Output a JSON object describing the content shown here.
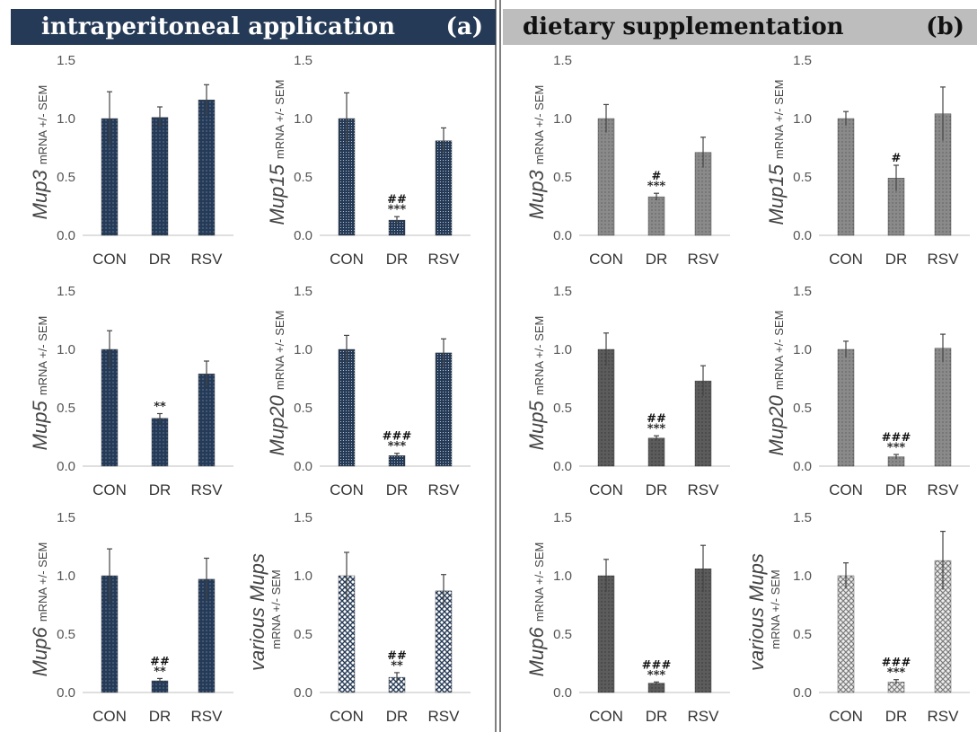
{
  "colors": {
    "header_a_bg": "#253a56",
    "header_b_bg": "#bdbdbd",
    "bar_a": "#253a56",
    "bar_b": "#7a7a7a",
    "bar_b_dark": "#5c5c5c",
    "bar_b_light": "#cfcfcf"
  },
  "panel_a": {
    "title": "intraperitoneal application",
    "label": "(a)"
  },
  "panel_b": {
    "title": "dietary supplementation",
    "label": "(b)"
  },
  "chart_data": [
    {
      "type": "bar",
      "panel": "a",
      "gene": "Mup3",
      "ylabel_unit": "mRNA +/- SEM",
      "categories": [
        "CON",
        "DR",
        "RSV"
      ],
      "values": [
        1.0,
        1.01,
        1.16
      ],
      "errors": [
        0.23,
        0.09,
        0.13
      ],
      "significance": [
        "",
        "",
        ""
      ],
      "ylim": [
        0,
        1.5
      ],
      "yticks": [
        "0.0",
        "0.5",
        "1.0",
        "1.5"
      ]
    },
    {
      "type": "bar",
      "panel": "a",
      "gene": "Mup15",
      "ylabel_unit": "mRNA +/- SEM",
      "categories": [
        "CON",
        "DR",
        "RSV"
      ],
      "values": [
        1.0,
        0.13,
        0.81
      ],
      "errors": [
        0.22,
        0.03,
        0.11
      ],
      "significance": [
        "",
        "##\n***",
        ""
      ],
      "ylim": [
        0,
        1.5
      ],
      "yticks": [
        "0.0",
        "0.5",
        "1.0",
        "1.5"
      ]
    },
    {
      "type": "bar",
      "panel": "a",
      "gene": "Mup5",
      "ylabel_unit": "mRNA  +/- SEM",
      "categories": [
        "CON",
        "DR",
        "RSV"
      ],
      "values": [
        1.0,
        0.41,
        0.79
      ],
      "errors": [
        0.16,
        0.04,
        0.11
      ],
      "significance": [
        "",
        "**",
        ""
      ],
      "ylim": [
        0,
        1.5
      ],
      "yticks": [
        "0.0",
        "0.5",
        "1.0",
        "1.5"
      ]
    },
    {
      "type": "bar",
      "panel": "a",
      "gene": "Mup20",
      "ylabel_unit": "mRNA  +/- SEM",
      "categories": [
        "CON",
        "DR",
        "RSV"
      ],
      "values": [
        1.0,
        0.09,
        0.97
      ],
      "errors": [
        0.12,
        0.02,
        0.12
      ],
      "significance": [
        "",
        "###\n***",
        ""
      ],
      "ylim": [
        0,
        1.5
      ],
      "yticks": [
        "0.0",
        "0.5",
        "1.0",
        "1.5"
      ]
    },
    {
      "type": "bar",
      "panel": "a",
      "gene": "Mup6",
      "ylabel_unit": "mRNA +/- SEM",
      "categories": [
        "CON",
        "DR",
        "RSV"
      ],
      "values": [
        1.0,
        0.1,
        0.97
      ],
      "errors": [
        0.23,
        0.02,
        0.18
      ],
      "significance": [
        "",
        "##\n**",
        ""
      ],
      "ylim": [
        0,
        1.5
      ],
      "yticks": [
        "0.0",
        "0.5",
        "1.0",
        "1.5"
      ]
    },
    {
      "type": "bar",
      "panel": "a",
      "gene": "various Mups",
      "ylabel_unit": "mRNA +/- SEM",
      "categories": [
        "CON",
        "DR",
        "RSV"
      ],
      "values": [
        1.0,
        0.13,
        0.87
      ],
      "errors": [
        0.2,
        0.04,
        0.14
      ],
      "significance": [
        "",
        "##\n**",
        ""
      ],
      "ylim": [
        0,
        1.5
      ],
      "yticks": [
        "0.0",
        "0.5",
        "1.0",
        "1.5"
      ]
    },
    {
      "type": "bar",
      "panel": "b",
      "gene": "Mup3",
      "ylabel_unit": "mRNA +/- SEM",
      "categories": [
        "CON",
        "DR",
        "RSV"
      ],
      "values": [
        1.0,
        0.33,
        0.71
      ],
      "errors": [
        0.12,
        0.03,
        0.13
      ],
      "significance": [
        "",
        "#\n***",
        ""
      ],
      "ylim": [
        0,
        1.5
      ],
      "yticks": [
        "0.0",
        "0.5",
        "1.0",
        "1.5"
      ]
    },
    {
      "type": "bar",
      "panel": "b",
      "gene": "Mup15",
      "ylabel_unit": "mRNA +/- SEM",
      "categories": [
        "CON",
        "DR",
        "RSV"
      ],
      "values": [
        1.0,
        0.49,
        1.04
      ],
      "errors": [
        0.06,
        0.11,
        0.23
      ],
      "significance": [
        "",
        "#",
        ""
      ],
      "ylim": [
        0,
        1.5
      ],
      "yticks": [
        "0.0",
        "0.5",
        "1.0",
        "1.5"
      ]
    },
    {
      "type": "bar",
      "panel": "b",
      "gene": "Mup5",
      "ylabel_unit": "mRNA +/- SEM",
      "categories": [
        "CON",
        "DR",
        "RSV"
      ],
      "values": [
        1.0,
        0.24,
        0.73
      ],
      "errors": [
        0.14,
        0.02,
        0.13
      ],
      "significance": [
        "",
        "##\n***",
        ""
      ],
      "ylim": [
        0,
        1.5
      ],
      "yticks": [
        "0.0",
        "0.5",
        "1.0",
        "1.5"
      ]
    },
    {
      "type": "bar",
      "panel": "b",
      "gene": "Mup20",
      "ylabel_unit": "mRNA +/- SEM",
      "categories": [
        "CON",
        "DR",
        "RSV"
      ],
      "values": [
        1.0,
        0.08,
        1.01
      ],
      "errors": [
        0.07,
        0.02,
        0.12
      ],
      "significance": [
        "",
        "###\n***",
        ""
      ],
      "ylim": [
        0,
        1.5
      ],
      "yticks": [
        "0.0",
        "0.5",
        "1.0",
        "1.5"
      ]
    },
    {
      "type": "bar",
      "panel": "b",
      "gene": "Mup6",
      "ylabel_unit": "mRNA +/- SEM",
      "categories": [
        "CON",
        "DR",
        "RSV"
      ],
      "values": [
        1.0,
        0.08,
        1.06
      ],
      "errors": [
        0.14,
        0.01,
        0.2
      ],
      "significance": [
        "",
        "###\n***",
        ""
      ],
      "ylim": [
        0,
        1.5
      ],
      "yticks": [
        "0.0",
        "0.5",
        "1.0",
        "1.5"
      ]
    },
    {
      "type": "bar",
      "panel": "b",
      "gene": "various Mups",
      "ylabel_unit": "mRNA +/- SEM",
      "categories": [
        "CON",
        "DR",
        "RSV"
      ],
      "values": [
        1.0,
        0.09,
        1.13
      ],
      "errors": [
        0.11,
        0.02,
        0.25
      ],
      "significance": [
        "",
        "###\n***",
        ""
      ],
      "ylim": [
        0,
        1.5
      ],
      "yticks": [
        "0.0",
        "0.5",
        "1.0",
        "1.5"
      ]
    }
  ]
}
